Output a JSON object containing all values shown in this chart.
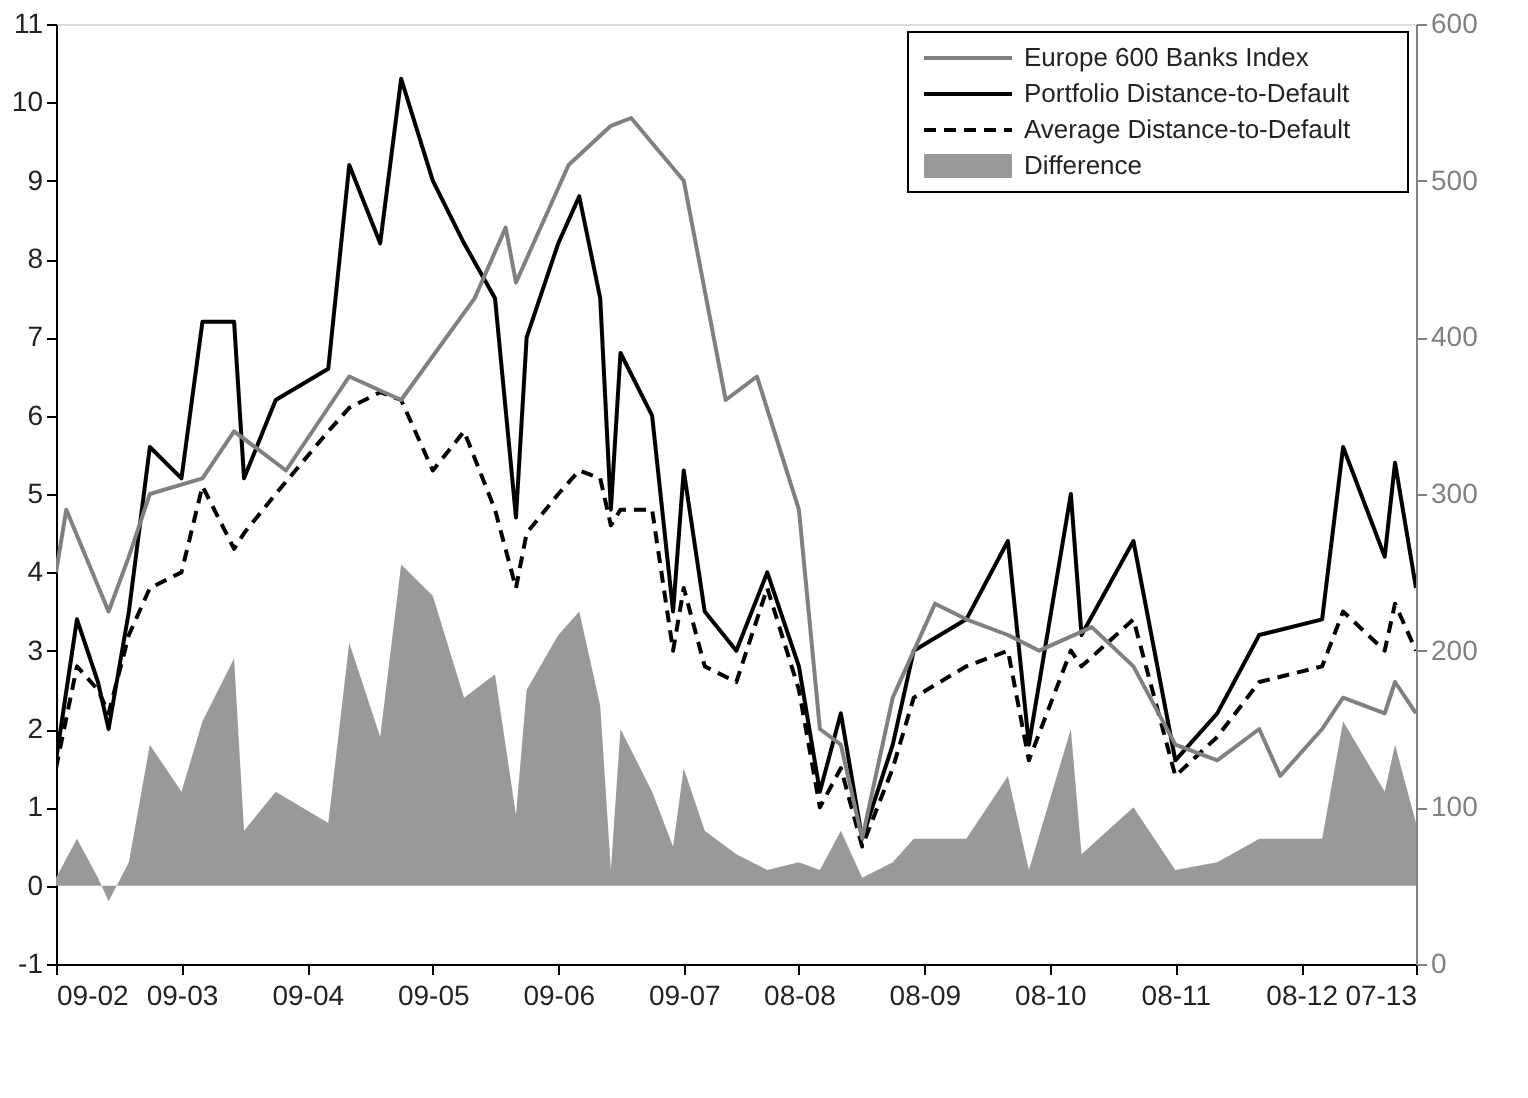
{
  "chart_data": {
    "type": "line",
    "xlim": [
      "2002-09",
      "2013-07"
    ],
    "xticks": [
      {
        "value": "2002-09",
        "label": "09-02"
      },
      {
        "value": "2003-09",
        "label": "09-03"
      },
      {
        "value": "2004-09",
        "label": "09-04"
      },
      {
        "value": "2005-09",
        "label": "09-05"
      },
      {
        "value": "2006-09",
        "label": "09-06"
      },
      {
        "value": "2007-09",
        "label": "09-07"
      },
      {
        "value": "2008-08",
        "label": "08-08"
      },
      {
        "value": "2009-08",
        "label": "08-09"
      },
      {
        "value": "2010-08",
        "label": "08-10"
      },
      {
        "value": "2011-08",
        "label": "08-11"
      },
      {
        "value": "2012-08",
        "label": "08-12"
      },
      {
        "value": "2013-07",
        "label": "07-13"
      }
    ],
    "ylim": [
      -1,
      11
    ],
    "yticks": [
      -1,
      0,
      1,
      2,
      3,
      4,
      5,
      6,
      7,
      8,
      9,
      10,
      11
    ],
    "y2lim": [
      0,
      600
    ],
    "y2ticks": [
      0,
      100,
      200,
      300,
      400,
      500,
      600
    ],
    "grid": false,
    "legend": "top right",
    "series": [
      {
        "name": "Difference",
        "type": "area",
        "color": "#999999",
        "x": [
          "2002-09",
          "2002-11",
          "2003-01",
          "2003-02",
          "2003-04",
          "2003-06",
          "2003-09",
          "2003-11",
          "2004-02",
          "2004-03",
          "2004-06",
          "2004-11",
          "2005-01",
          "2005-04",
          "2005-06",
          "2005-09",
          "2005-12",
          "2006-03",
          "2006-05",
          "2006-06",
          "2006-09",
          "2006-11",
          "2007-01",
          "2007-02",
          "2007-03",
          "2007-06",
          "2007-08",
          "2007-09",
          "2007-11",
          "2008-02",
          "2008-05",
          "2008-08",
          "2008-10",
          "2008-12",
          "2009-02",
          "2009-05",
          "2009-07",
          "2009-12",
          "2010-04",
          "2010-06",
          "2010-10",
          "2010-11",
          "2011-04",
          "2011-08",
          "2011-12",
          "2012-04",
          "2012-10",
          "2012-12",
          "2013-04",
          "2013-05",
          "2013-07"
        ],
        "values": [
          0.1,
          0.6,
          0.1,
          -0.2,
          0.3,
          1.8,
          1.2,
          2.1,
          2.9,
          0.7,
          1.2,
          0.8,
          3.1,
          1.9,
          4.1,
          3.7,
          2.4,
          2.7,
          0.9,
          2.5,
          3.2,
          3.5,
          2.3,
          0.2,
          2.0,
          1.2,
          0.5,
          1.5,
          0.7,
          0.4,
          0.2,
          0.3,
          0.2,
          0.7,
          0.1,
          0.3,
          0.6,
          0.6,
          1.4,
          0.2,
          2.0,
          0.4,
          1.0,
          0.2,
          0.3,
          0.6,
          0.6,
          2.1,
          1.2,
          1.8,
          0.8
        ]
      },
      {
        "name": "Europe 600 Banks Index",
        "axis": "y2",
        "color": "#808080",
        "line_style": "solid",
        "x": [
          "2002-09",
          "2002-10",
          "2003-02",
          "2003-04",
          "2003-06",
          "2003-11",
          "2004-02",
          "2004-07",
          "2005-01",
          "2005-06",
          "2006-01",
          "2006-04",
          "2006-05",
          "2006-10",
          "2007-02",
          "2007-04",
          "2007-09",
          "2007-11",
          "2008-01",
          "2008-04",
          "2008-08",
          "2008-10",
          "2008-12",
          "2009-02",
          "2009-05",
          "2009-09",
          "2009-12",
          "2010-04",
          "2010-07",
          "2010-12",
          "2011-04",
          "2011-08",
          "2011-12",
          "2012-04",
          "2012-06",
          "2012-10",
          "2012-12",
          "2013-04",
          "2013-05",
          "2013-07"
        ],
        "values": [
          250,
          290,
          225,
          260,
          300,
          310,
          340,
          315,
          375,
          360,
          425,
          470,
          435,
          510,
          535,
          540,
          500,
          430,
          360,
          375,
          290,
          150,
          140,
          80,
          170,
          230,
          220,
          210,
          200,
          215,
          190,
          140,
          130,
          150,
          120,
          150,
          170,
          160,
          180,
          160
        ]
      },
      {
        "name": "Portfolio Distance-to-Default",
        "color": "#000000",
        "line_style": "solid",
        "x": [
          "2002-09",
          "2002-11",
          "2003-01",
          "2003-02",
          "2003-04",
          "2003-06",
          "2003-09",
          "2003-11",
          "2004-02",
          "2004-03",
          "2004-06",
          "2004-11",
          "2005-01",
          "2005-04",
          "2005-06",
          "2005-09",
          "2005-12",
          "2006-03",
          "2006-05",
          "2006-06",
          "2006-09",
          "2006-11",
          "2007-01",
          "2007-02",
          "2007-03",
          "2007-06",
          "2007-08",
          "2007-09",
          "2007-11",
          "2008-02",
          "2008-05",
          "2008-08",
          "2008-10",
          "2008-12",
          "2009-02",
          "2009-05",
          "2009-07",
          "2009-12",
          "2010-04",
          "2010-06",
          "2010-10",
          "2010-11",
          "2011-04",
          "2011-08",
          "2011-12",
          "2012-04",
          "2012-10",
          "2012-12",
          "2013-04",
          "2013-05",
          "2013-07"
        ],
        "values": [
          1.6,
          3.4,
          2.6,
          2.0,
          3.5,
          5.6,
          5.2,
          7.2,
          7.2,
          5.2,
          6.2,
          6.6,
          9.2,
          8.2,
          10.3,
          9.0,
          8.2,
          7.5,
          4.7,
          7.0,
          8.2,
          8.8,
          7.5,
          4.8,
          6.8,
          6.0,
          3.5,
          5.3,
          3.5,
          3.0,
          4.0,
          2.8,
          1.2,
          2.2,
          0.6,
          1.8,
          3.0,
          3.4,
          4.4,
          1.8,
          5.0,
          3.2,
          4.4,
          1.6,
          2.2,
          3.2,
          3.4,
          5.6,
          4.2,
          5.4,
          3.8
        ]
      },
      {
        "name": "Average Distance-to-Default",
        "color": "#000000",
        "line_style": "dashed",
        "x": [
          "2002-09",
          "2002-11",
          "2003-01",
          "2003-02",
          "2003-04",
          "2003-06",
          "2003-09",
          "2003-11",
          "2004-02",
          "2004-03",
          "2004-06",
          "2004-11",
          "2005-01",
          "2005-04",
          "2005-06",
          "2005-09",
          "2005-12",
          "2006-03",
          "2006-05",
          "2006-06",
          "2006-09",
          "2006-11",
          "2007-01",
          "2007-02",
          "2007-03",
          "2007-06",
          "2007-08",
          "2007-09",
          "2007-11",
          "2008-02",
          "2008-05",
          "2008-08",
          "2008-10",
          "2008-12",
          "2009-02",
          "2009-05",
          "2009-07",
          "2009-12",
          "2010-04",
          "2010-06",
          "2010-10",
          "2010-11",
          "2011-04",
          "2011-08",
          "2011-12",
          "2012-04",
          "2012-10",
          "2012-12",
          "2013-04",
          "2013-05",
          "2013-07"
        ],
        "values": [
          1.5,
          2.8,
          2.5,
          2.2,
          3.2,
          3.8,
          4.0,
          5.1,
          4.3,
          4.5,
          5.0,
          5.8,
          6.1,
          6.3,
          6.2,
          5.3,
          5.8,
          4.8,
          3.8,
          4.5,
          5.0,
          5.3,
          5.2,
          4.6,
          4.8,
          4.8,
          3.0,
          3.8,
          2.8,
          2.6,
          3.8,
          2.5,
          1.0,
          1.5,
          0.5,
          1.5,
          2.4,
          2.8,
          3.0,
          1.6,
          3.0,
          2.8,
          3.4,
          1.4,
          1.9,
          2.6,
          2.8,
          3.5,
          3.0,
          3.6,
          3.0
        ]
      }
    ]
  }
}
